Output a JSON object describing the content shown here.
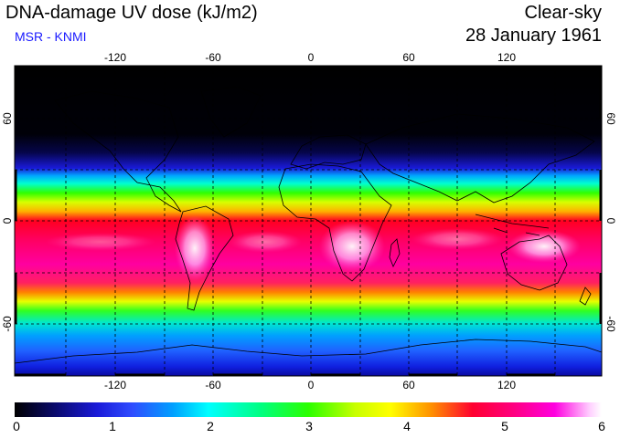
{
  "header": {
    "title": "DNA-damage UV dose (kJ/m2)",
    "sky_condition": "Clear-sky",
    "source": "MSR - KNMI",
    "date": "28 January 1961"
  },
  "map": {
    "longitude_ticks": [
      "-120",
      "-60",
      "0",
      "60",
      "120"
    ],
    "latitude_ticks": [
      "60",
      "0",
      "-60"
    ],
    "projection": "equirectangular",
    "gridlines": "dashed"
  },
  "colorbar": {
    "ticks": [
      "0",
      "1",
      "2",
      "3",
      "4",
      "5",
      "6"
    ],
    "min": 0,
    "max": 6
  },
  "colors": {
    "source_text": "#1a1aff"
  }
}
